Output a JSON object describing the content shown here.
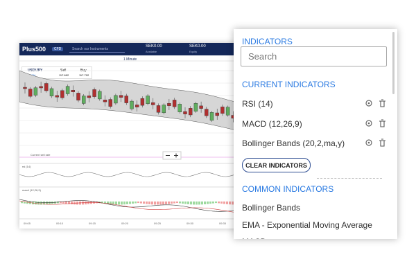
{
  "header": {
    "logo": "Plus500",
    "badge": "CFD",
    "search_placeholder": "Search our Instruments",
    "available_value": "SEK0.00",
    "available_label": "Available",
    "equity_value": "SEK0.00",
    "equity_label": "Equity"
  },
  "toolbar": {
    "interval": "1 Minute"
  },
  "instrument": {
    "symbol": "USD/JPY",
    "change": "0.33%",
    "sell_label": "Sell",
    "sell_price": "117.692",
    "buy_label": "Buy",
    "buy_price": "117.702"
  },
  "chart": {
    "current_rate_label": "Current sell rate",
    "rsi_label": "rsi (14)",
    "macd_label": "macd (12,26,9)",
    "times": [
      "09:05",
      "09:10",
      "09:15",
      "09:20",
      "09:25",
      "09:30",
      "09:35"
    ]
  },
  "panel": {
    "title": "INDICATORS",
    "search_placeholder": "Search",
    "current_title": "CURRENT INDICATORS",
    "current": [
      "RSI (14)",
      "MACD (12,26,9)",
      "Bollinger Bands (20,2,ma,y)"
    ],
    "clear_button": "CLEAR INDICATORS",
    "common_title": "COMMON INDICATORS",
    "common": [
      "Bollinger Bands",
      "EMA - Exponential Moving Average",
      "MACD"
    ]
  }
}
